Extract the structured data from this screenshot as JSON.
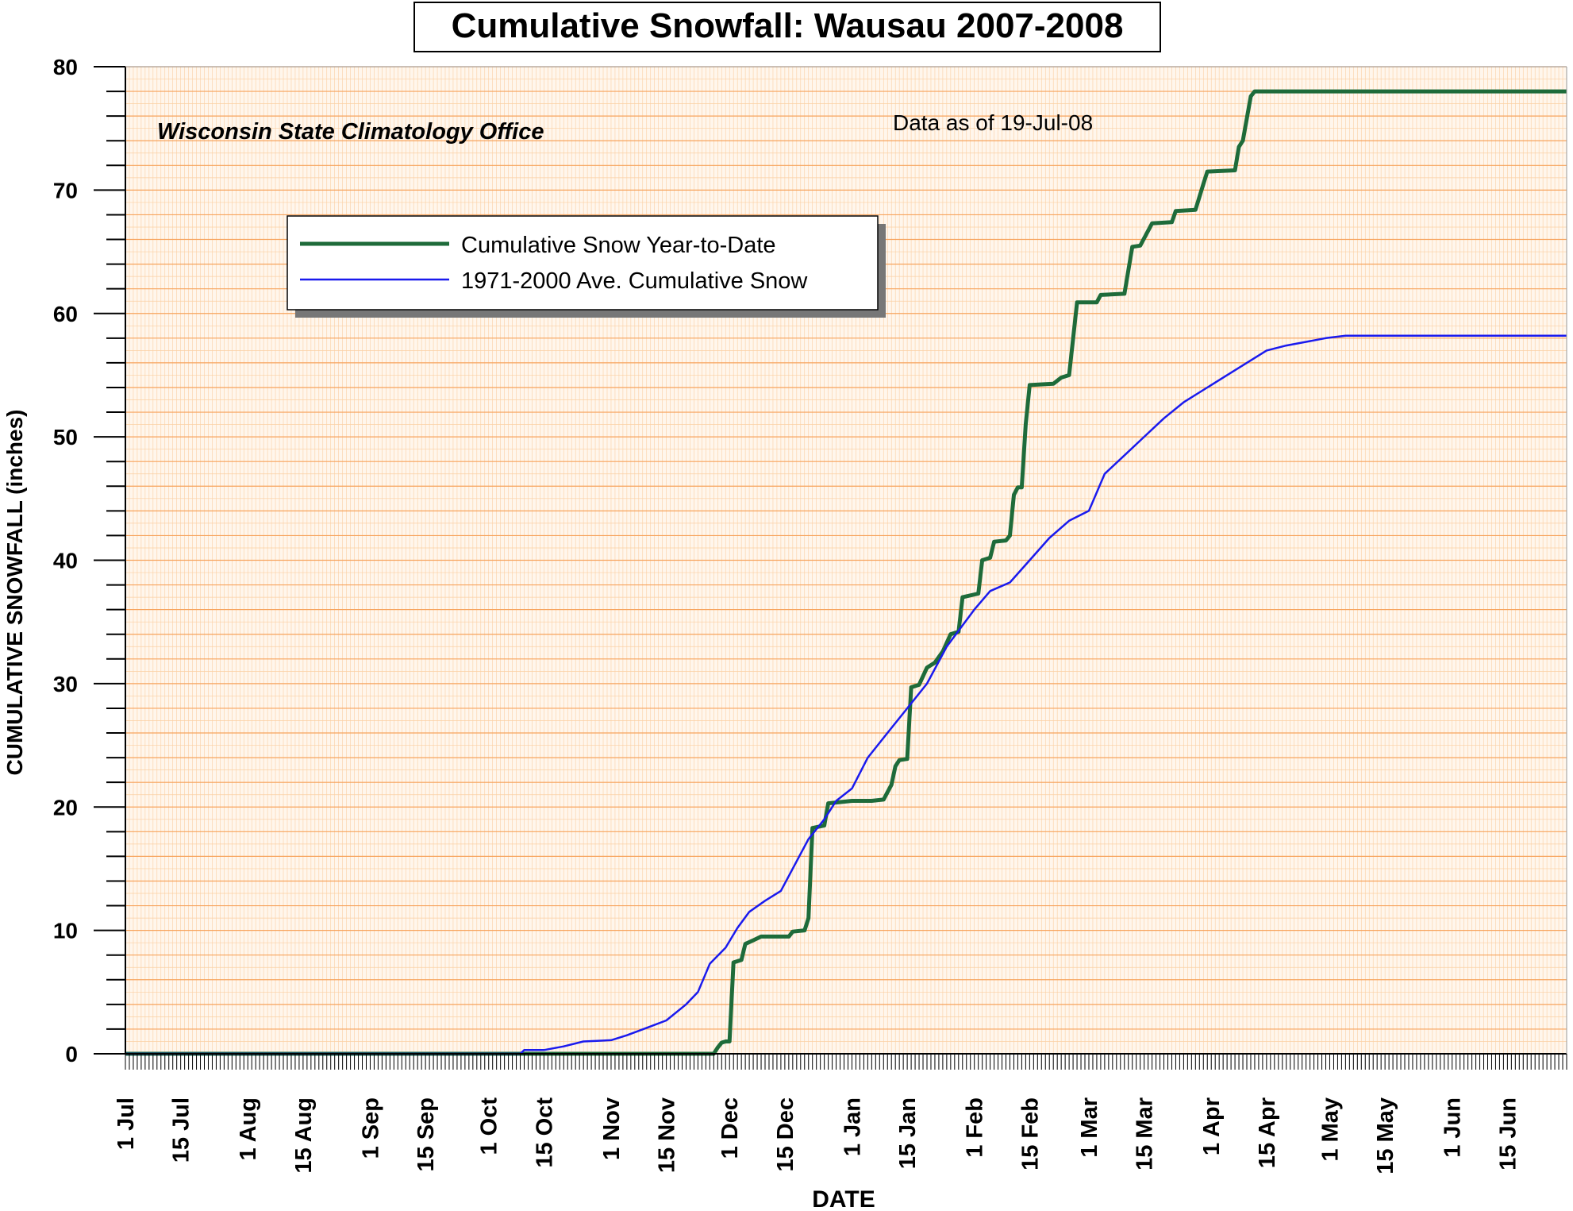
{
  "chart_data": {
    "type": "line",
    "title": "Cumulative Snowfall: Wausau 2007-2008",
    "subtitle": "Wisconsin State Climatology Office",
    "annotation": "Data as of 19-Jul-08",
    "xlabel": "DATE",
    "ylabel": "CUMULATIVE SNOWFALL (inches)",
    "ylim": [
      0,
      80
    ],
    "y_ticks": [
      0,
      10,
      20,
      30,
      40,
      50,
      60,
      70,
      80
    ],
    "xlim": [
      "2007-07-01",
      "2008-06-30"
    ],
    "x_ticks": [
      {
        "date": "2007-07-01",
        "label": "1 Jul"
      },
      {
        "date": "2007-07-15",
        "label": "15 Jul"
      },
      {
        "date": "2007-08-01",
        "label": "1 Aug"
      },
      {
        "date": "2007-08-15",
        "label": "15 Aug"
      },
      {
        "date": "2007-09-01",
        "label": "1 Sep"
      },
      {
        "date": "2007-09-15",
        "label": "15 Sep"
      },
      {
        "date": "2007-10-01",
        "label": "1 Oct"
      },
      {
        "date": "2007-10-15",
        "label": "15 Oct"
      },
      {
        "date": "2007-11-01",
        "label": "1 Nov"
      },
      {
        "date": "2007-11-15",
        "label": "15 Nov"
      },
      {
        "date": "2007-12-01",
        "label": "1 Dec"
      },
      {
        "date": "2007-12-15",
        "label": "15 Dec"
      },
      {
        "date": "2008-01-01",
        "label": "1 Jan"
      },
      {
        "date": "2008-01-15",
        "label": "15 Jan"
      },
      {
        "date": "2008-02-01",
        "label": "1 Feb"
      },
      {
        "date": "2008-02-15",
        "label": "15 Feb"
      },
      {
        "date": "2008-03-01",
        "label": "1 Mar"
      },
      {
        "date": "2008-03-15",
        "label": "15 Mar"
      },
      {
        "date": "2008-04-01",
        "label": "1 Apr"
      },
      {
        "date": "2008-04-15",
        "label": "15 Apr"
      },
      {
        "date": "2008-05-01",
        "label": "1 May"
      },
      {
        "date": "2008-05-15",
        "label": "15 May"
      },
      {
        "date": "2008-06-01",
        "label": "1 Jun"
      },
      {
        "date": "2008-06-15",
        "label": "15 Jun"
      }
    ],
    "grid": true,
    "legend_position": "upper-left",
    "colors": {
      "background": "#fff6ec",
      "grid_major": "#f7a35c",
      "grid_minor": "#fbcfa2",
      "ytd": "#1e6b3a",
      "avg": "#1a1aee"
    },
    "series": [
      {
        "name": "Cumulative Snow Year-to-Date",
        "color": "#1e6b3a",
        "points": [
          [
            "2007-07-01",
            0
          ],
          [
            "2007-11-27",
            0
          ],
          [
            "2007-11-28",
            0.5
          ],
          [
            "2007-11-29",
            0.9
          ],
          [
            "2007-11-30",
            1
          ],
          [
            "2007-12-01",
            1
          ],
          [
            "2007-12-02",
            7.4
          ],
          [
            "2007-12-04",
            7.6
          ],
          [
            "2007-12-05",
            8.9
          ],
          [
            "2007-12-07",
            9.2
          ],
          [
            "2007-12-09",
            9.5
          ],
          [
            "2007-12-16",
            9.5
          ],
          [
            "2007-12-17",
            9.9
          ],
          [
            "2007-12-20",
            10
          ],
          [
            "2007-12-21",
            11
          ],
          [
            "2007-12-22",
            18.3
          ],
          [
            "2007-12-25",
            18.5
          ],
          [
            "2007-12-26",
            20.3
          ],
          [
            "2008-01-01",
            20.5
          ],
          [
            "2008-01-06",
            20.5
          ],
          [
            "2008-01-09",
            20.6
          ],
          [
            "2008-01-11",
            21.8
          ],
          [
            "2008-01-12",
            23.3
          ],
          [
            "2008-01-13",
            23.8
          ],
          [
            "2008-01-15",
            23.9
          ],
          [
            "2008-01-16",
            29.7
          ],
          [
            "2008-01-18",
            29.9
          ],
          [
            "2008-01-20",
            31.3
          ],
          [
            "2008-01-22",
            31.7
          ],
          [
            "2008-01-24",
            32.6
          ],
          [
            "2008-01-26",
            34
          ],
          [
            "2008-01-28",
            34.2
          ],
          [
            "2008-01-29",
            37
          ],
          [
            "2008-02-02",
            37.3
          ],
          [
            "2008-02-03",
            40
          ],
          [
            "2008-02-05",
            40.2
          ],
          [
            "2008-02-06",
            41.5
          ],
          [
            "2008-02-09",
            41.6
          ],
          [
            "2008-02-10",
            42
          ],
          [
            "2008-02-11",
            45.3
          ],
          [
            "2008-02-12",
            45.9
          ],
          [
            "2008-02-13",
            45.9
          ],
          [
            "2008-02-14",
            51
          ],
          [
            "2008-02-15",
            54.2
          ],
          [
            "2008-02-21",
            54.3
          ],
          [
            "2008-02-23",
            54.8
          ],
          [
            "2008-02-25",
            55
          ],
          [
            "2008-02-27",
            60.9
          ],
          [
            "2008-03-03",
            60.9
          ],
          [
            "2008-03-04",
            61.5
          ],
          [
            "2008-03-10",
            61.6
          ],
          [
            "2008-03-12",
            65.4
          ],
          [
            "2008-03-14",
            65.5
          ],
          [
            "2008-03-17",
            67.3
          ],
          [
            "2008-03-22",
            67.4
          ],
          [
            "2008-03-23",
            68.3
          ],
          [
            "2008-03-28",
            68.4
          ],
          [
            "2008-03-30",
            70.5
          ],
          [
            "2008-03-31",
            71.5
          ],
          [
            "2008-04-07",
            71.6
          ],
          [
            "2008-04-08",
            73.5
          ],
          [
            "2008-04-09",
            74
          ],
          [
            "2008-04-11",
            77.6
          ],
          [
            "2008-04-12",
            78
          ],
          [
            "2008-06-30",
            78
          ]
        ]
      },
      {
        "name": "1971-2000 Ave. Cumulative Snow",
        "color": "#1a1aee",
        "points": [
          [
            "2007-07-01",
            0
          ],
          [
            "2007-10-09",
            0
          ],
          [
            "2007-10-10",
            0.3
          ],
          [
            "2007-10-15",
            0.3
          ],
          [
            "2007-10-20",
            0.6
          ],
          [
            "2007-10-25",
            1.0
          ],
          [
            "2007-11-01",
            1.1
          ],
          [
            "2007-11-05",
            1.5
          ],
          [
            "2007-11-10",
            2.1
          ],
          [
            "2007-11-15",
            2.7
          ],
          [
            "2007-11-20",
            4.0
          ],
          [
            "2007-11-23",
            5.0
          ],
          [
            "2007-11-26",
            7.3
          ],
          [
            "2007-11-30",
            8.6
          ],
          [
            "2007-12-03",
            10.2
          ],
          [
            "2007-12-06",
            11.5
          ],
          [
            "2007-12-10",
            12.4
          ],
          [
            "2007-12-14",
            13.2
          ],
          [
            "2007-12-17",
            15.0
          ],
          [
            "2007-12-21",
            17.4
          ],
          [
            "2007-12-25",
            19.0
          ],
          [
            "2007-12-28",
            20.5
          ],
          [
            "2008-01-01",
            21.5
          ],
          [
            "2008-01-05",
            24.0
          ],
          [
            "2008-01-10",
            26.0
          ],
          [
            "2008-01-15",
            28.0
          ],
          [
            "2008-01-20",
            30.0
          ],
          [
            "2008-01-25",
            33.0
          ],
          [
            "2008-02-01",
            36.0
          ],
          [
            "2008-02-05",
            37.5
          ],
          [
            "2008-02-10",
            38.2
          ],
          [
            "2008-02-15",
            40.0
          ],
          [
            "2008-02-20",
            41.8
          ],
          [
            "2008-02-25",
            43.2
          ],
          [
            "2008-03-01",
            44.0
          ],
          [
            "2008-03-05",
            47.0
          ],
          [
            "2008-03-10",
            48.5
          ],
          [
            "2008-03-15",
            50.0
          ],
          [
            "2008-03-20",
            51.5
          ],
          [
            "2008-03-25",
            52.8
          ],
          [
            "2008-03-31",
            54.0
          ],
          [
            "2008-04-05",
            55.0
          ],
          [
            "2008-04-10",
            56.0
          ],
          [
            "2008-04-15",
            57.0
          ],
          [
            "2008-04-20",
            57.4
          ],
          [
            "2008-04-25",
            57.7
          ],
          [
            "2008-04-30",
            58.0
          ],
          [
            "2008-05-05",
            58.2
          ],
          [
            "2008-06-30",
            58.2
          ]
        ]
      }
    ]
  }
}
